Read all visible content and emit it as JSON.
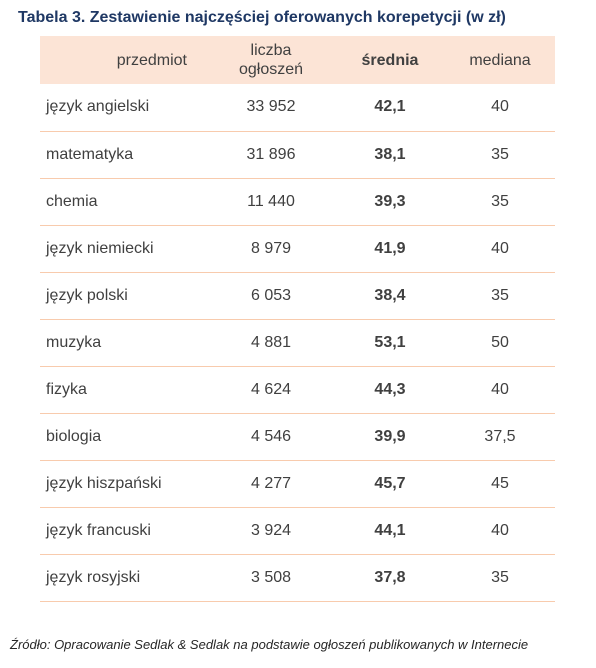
{
  "title": "Tabela 3. Zestawienie najczęściej oferowanych korepetycji (w zł)",
  "header": {
    "subject": "przedmiot",
    "count_line1": "liczba",
    "count_line2": "ogłoszeń",
    "average": "średnia",
    "median": "mediana"
  },
  "rows": [
    {
      "subject": "język angielski",
      "count": "33 952",
      "average": "42,1",
      "median": "40"
    },
    {
      "subject": "matematyka",
      "count": "31 896",
      "average": "38,1",
      "median": "35"
    },
    {
      "subject": "chemia",
      "count": "11 440",
      "average": "39,3",
      "median": "35"
    },
    {
      "subject": "język niemiecki",
      "count": "8 979",
      "average": "41,9",
      "median": "40"
    },
    {
      "subject": "język polski",
      "count": "6 053",
      "average": "38,4",
      "median": "35"
    },
    {
      "subject": "muzyka",
      "count": "4 881",
      "average": "53,1",
      "median": "50"
    },
    {
      "subject": "fizyka",
      "count": "4 624",
      "average": "44,3",
      "median": "40"
    },
    {
      "subject": "biologia",
      "count": "4 546",
      "average": "39,9",
      "median": "37,5"
    },
    {
      "subject": "język hiszpański",
      "count": "4 277",
      "average": "45,7",
      "median": "45"
    },
    {
      "subject": "język francuski",
      "count": "3 924",
      "average": "44,1",
      "median": "40"
    },
    {
      "subject": "język rosyjski",
      "count": "3 508",
      "average": "37,8",
      "median": "35"
    }
  ],
  "source": "Źródło: Opracowanie Sedlak & Sedlak na podstawie ogłoszeń publikowanych w Internecie",
  "colors": {
    "title": "#1f3864",
    "header_background": "#fce4d6",
    "row_border": "#f8cbad",
    "text": "#404040"
  }
}
